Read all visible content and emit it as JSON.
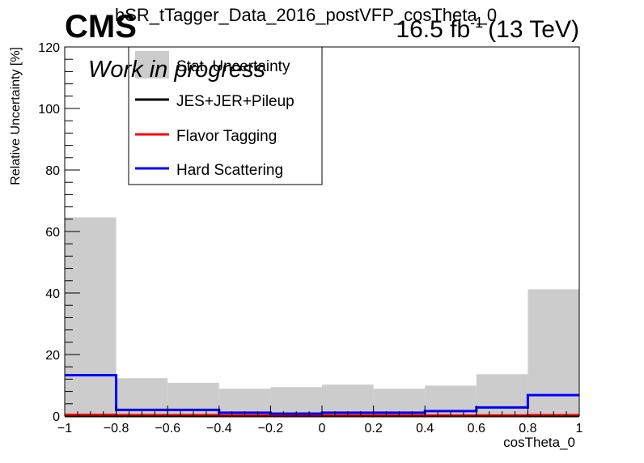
{
  "header": {
    "experiment": "CMS",
    "title": "bSR_tTagger_Data_2016_postVFP_cosTheta_0",
    "lumi_value": "16.5 fb",
    "lumi_exp": "-1",
    "energy": "(13 TeV)",
    "status": "Work in progress"
  },
  "colors": {
    "stat": "#cccccc",
    "jes": "#000000",
    "flavor": "#ff0000",
    "hard": "#0000ff"
  },
  "chart_data": {
    "type": "histogram",
    "xlabel": "cosTheta_0",
    "ylabel": "Relative Uncertainty [%]",
    "xlim": [
      -1,
      1
    ],
    "ylim": [
      0,
      120
    ],
    "x_ticks": [
      "−1",
      "−0.8",
      "−0.6",
      "−0.4",
      "−0.2",
      "0",
      "0.2",
      "0.4",
      "0.6",
      "0.8",
      "1"
    ],
    "y_ticks": [
      "0",
      "20",
      "40",
      "60",
      "80",
      "100",
      "120"
    ],
    "bin_edges": [
      -1,
      -0.8,
      -0.6,
      -0.4,
      -0.2,
      0,
      0.2,
      0.4,
      0.6,
      0.8,
      1
    ],
    "legend_position": "top-left",
    "series": [
      {
        "name": "Stat. Uncertainty",
        "style": "fill",
        "values": [
          64.6,
          12.3,
          10.8,
          8.9,
          9.4,
          10.2,
          8.9,
          9.9,
          13.6,
          41.2
        ]
      },
      {
        "name": "JES+JER+Pileup",
        "style": "line",
        "values": [
          0,
          0,
          0,
          0,
          0,
          0,
          0,
          0,
          0,
          0
        ]
      },
      {
        "name": "Flavor Tagging",
        "style": "line",
        "values": [
          0.4,
          0.3,
          0.3,
          0.2,
          0.2,
          0.2,
          0.2,
          0.2,
          0.2,
          0.3
        ]
      },
      {
        "name": "Hard Scattering",
        "style": "line",
        "values": [
          13.3,
          2.0,
          2.0,
          1.1,
          0.8,
          1.1,
          1.1,
          1.6,
          2.8,
          6.8
        ]
      }
    ]
  }
}
